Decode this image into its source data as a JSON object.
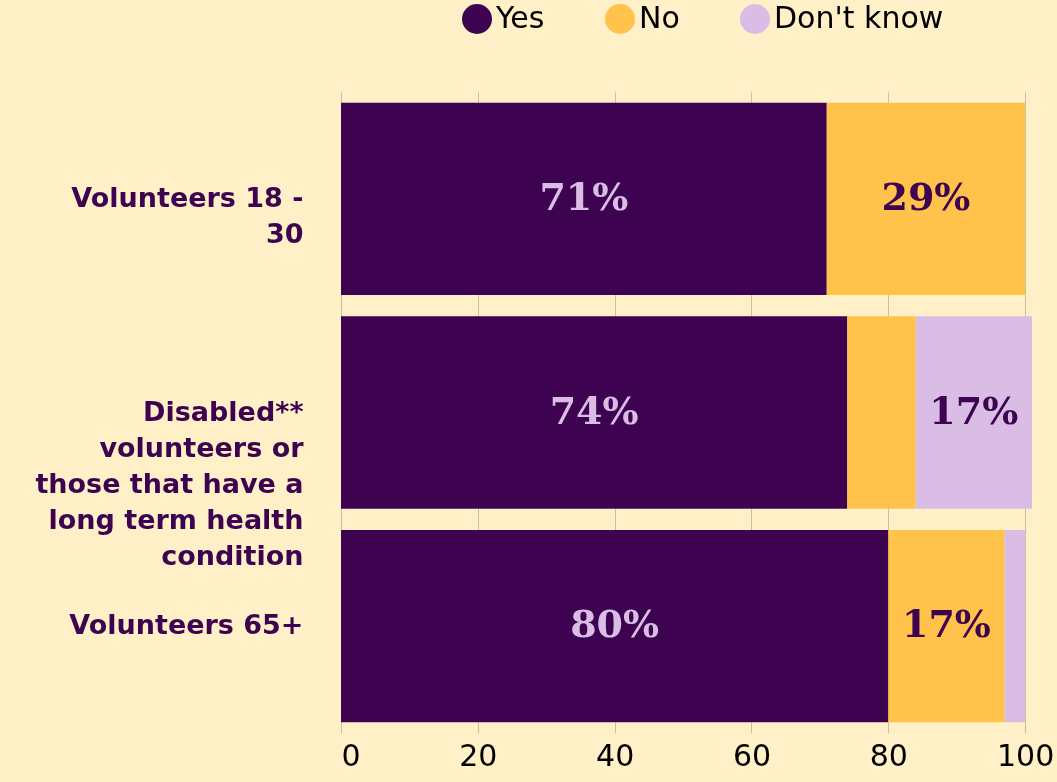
{
  "chart_data": {
    "type": "bar",
    "orientation": "horizontal",
    "stacked": true,
    "categories": [
      "Volunteers 18 - 30",
      "Disabled** volunteers or those that have a long term health condition",
      "Volunteers 65+"
    ],
    "series": [
      {
        "name": "Yes",
        "color": "#3d0350",
        "values": [
          71,
          74,
          80
        ],
        "value_labels": [
          "71%",
          "74%",
          "80%"
        ]
      },
      {
        "name": "No",
        "color": "#ffc24a",
        "values": [
          29,
          10,
          17
        ],
        "value_labels": [
          "29%",
          null,
          "17%"
        ]
      },
      {
        "name": "Don't know",
        "color": "#d9bde4",
        "values": [
          0,
          17,
          3
        ],
        "value_labels": [
          null,
          "17%",
          null
        ]
      }
    ],
    "xlim": [
      0,
      101
    ],
    "xticks": [
      0,
      20,
      40,
      60,
      80,
      100
    ],
    "grid": "x",
    "legend": "top right"
  }
}
